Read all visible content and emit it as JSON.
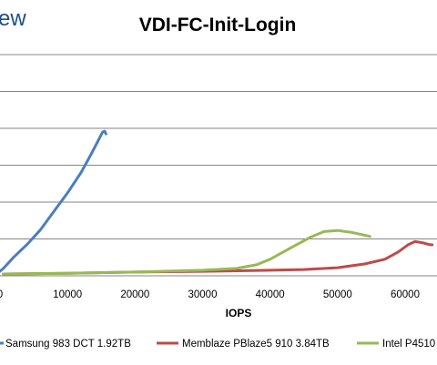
{
  "logo": {
    "text": "ew"
  },
  "chart_data": {
    "type": "line",
    "title": "VDI-FC-Init-Login",
    "xlabel": "IOPS",
    "ylabel": "",
    "xlim": [
      -1000,
      64000
    ],
    "ylim": [
      0,
      6
    ],
    "x_ticks": [
      0,
      10000,
      20000,
      30000,
      40000,
      50000,
      60000
    ],
    "x_tick_labels": [
      "0",
      "10000",
      "20000",
      "30000",
      "40000",
      "50000",
      "60000"
    ],
    "y_gridlines": [
      1,
      2,
      3,
      4,
      5,
      6
    ],
    "grid": true,
    "legend_position": "bottom",
    "series": [
      {
        "name": "Samsung 983 DCT 1.92TB",
        "color": "#4a7ebb",
        "x": [
          -500,
          500,
          2000,
          4000,
          6000,
          8000,
          10000,
          12000,
          13500,
          14500,
          15200,
          15500,
          15700
        ],
        "y": [
          0.05,
          0.2,
          0.5,
          0.85,
          1.25,
          1.75,
          2.25,
          2.8,
          3.3,
          3.65,
          3.9,
          3.92,
          3.85
        ]
      },
      {
        "name": "Memblaze PBlaze5 910 3.84TB",
        "color": "#be4b48",
        "x": [
          500,
          10000,
          20000,
          30000,
          40000,
          45000,
          50000,
          54000,
          57000,
          59000,
          60500,
          61500,
          62500,
          63500,
          64000
        ],
        "y": [
          0.05,
          0.07,
          0.1,
          0.12,
          0.15,
          0.17,
          0.22,
          0.32,
          0.45,
          0.65,
          0.85,
          0.93,
          0.9,
          0.85,
          0.84
        ]
      },
      {
        "name": "Intel P4510",
        "color": "#98b954",
        "x": [
          500,
          10000,
          20000,
          30000,
          35000,
          38000,
          40000,
          43000,
          46000,
          48000,
          50000,
          52000,
          54800
        ],
        "y": [
          0.05,
          0.07,
          0.1,
          0.15,
          0.2,
          0.3,
          0.45,
          0.75,
          1.05,
          1.2,
          1.23,
          1.18,
          1.07
        ]
      }
    ]
  }
}
